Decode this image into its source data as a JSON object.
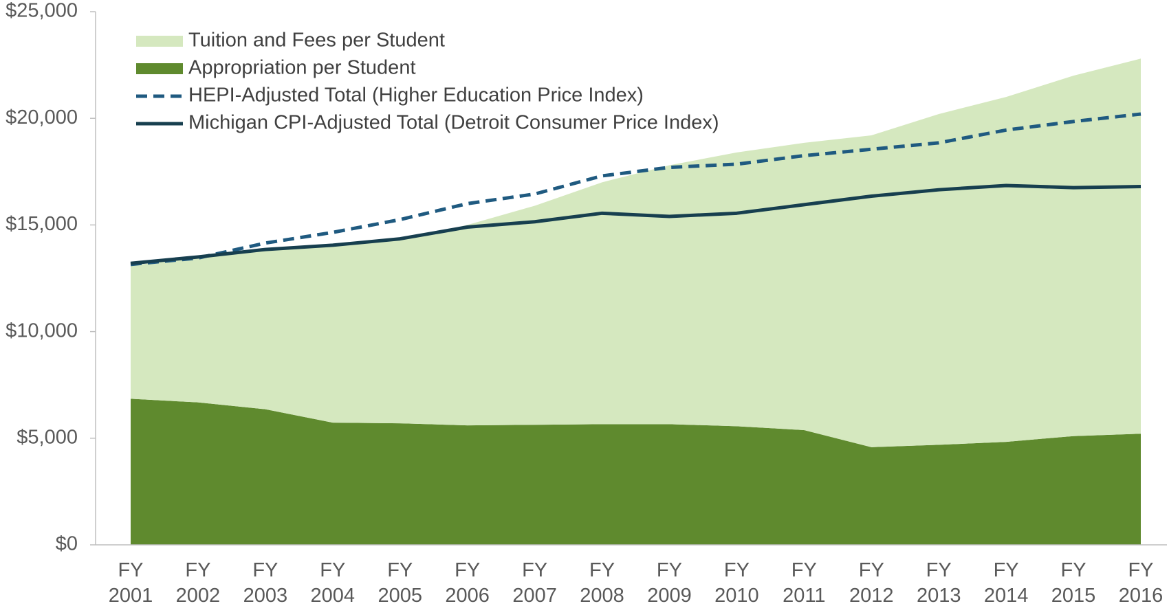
{
  "chart_data": {
    "type": "area",
    "categories": [
      "FY 2001",
      "FY 2002",
      "FY 2003",
      "FY 2004",
      "FY 2005",
      "FY 2006",
      "FY 2007",
      "FY 2008",
      "FY 2009",
      "FY 2010",
      "FY 2011",
      "FY 2012",
      "FY 2013",
      "FY 2014",
      "FY 2015",
      "FY 2016"
    ],
    "series": [
      {
        "name": "Tuition and Fees per Student",
        "kind": "stacked-area",
        "color": "#d5e8bf",
        "values": [
          6250,
          6770,
          7440,
          8270,
          8600,
          9400,
          10270,
          11340,
          12140,
          12840,
          13470,
          14620,
          15510,
          16170,
          16900,
          17590
        ]
      },
      {
        "name": "Appropriation per Student",
        "kind": "stacked-area",
        "color": "#5f8a2e",
        "values": [
          6850,
          6680,
          6360,
          5730,
          5700,
          5600,
          5630,
          5660,
          5660,
          5560,
          5380,
          4580,
          4690,
          4830,
          5100,
          5210
        ]
      },
      {
        "name": "HEPI-Adjusted Total (Higher Education Price Index)",
        "kind": "dashed-line",
        "color": "#1f5a80",
        "values": [
          13150,
          13450,
          14150,
          14650,
          15250,
          16000,
          16450,
          17300,
          17700,
          17850,
          18250,
          18550,
          18850,
          19450,
          19850,
          20200
        ]
      },
      {
        "name": "Michigan CPI-Adjusted Total (Detroit Consumer Price Index)",
        "kind": "line",
        "color": "#173f4f",
        "values": [
          13200,
          13500,
          13850,
          14050,
          14350,
          14900,
          15150,
          15550,
          15400,
          15550,
          15950,
          16350,
          16650,
          16850,
          16750,
          16800
        ]
      }
    ],
    "ylim": [
      0,
      25000
    ],
    "yticks": [
      {
        "value": 0,
        "label": "$0"
      },
      {
        "value": 5000,
        "label": "$5,000"
      },
      {
        "value": 10000,
        "label": "$10,000"
      },
      {
        "value": 15000,
        "label": "$15,000"
      },
      {
        "value": 20000,
        "label": "$20,000"
      },
      {
        "value": 25000,
        "label": "$25,000"
      }
    ],
    "legend": "upper left"
  }
}
